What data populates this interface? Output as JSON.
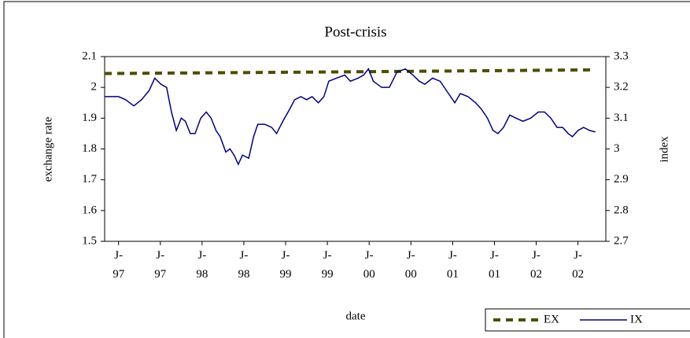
{
  "chart_data": {
    "type": "line",
    "title": "Post-crisis",
    "x_label": "date",
    "y_label": "exchange rate",
    "y2_label": "index",
    "xlim": [
      -2,
      70
    ],
    "xticks": [
      {
        "value": 0,
        "label": "J- 97"
      },
      {
        "value": 6,
        "label": "J- 97"
      },
      {
        "value": 12,
        "label": "J- 98"
      },
      {
        "value": 18,
        "label": "J- 98"
      },
      {
        "value": 24,
        "label": "J- 99"
      },
      {
        "value": 30,
        "label": "J- 99"
      },
      {
        "value": 36,
        "label": "J- 00"
      },
      {
        "value": 42,
        "label": "J- 00"
      },
      {
        "value": 48,
        "label": "J- 01"
      },
      {
        "value": 54,
        "label": "J- 01"
      },
      {
        "value": 60,
        "label": "J- 02"
      },
      {
        "value": 66,
        "label": "J- 02"
      }
    ],
    "ylim": [
      1.5,
      2.1
    ],
    "yticks": [
      1.5,
      1.6,
      1.7,
      1.8,
      1.9,
      2,
      2.1
    ],
    "y2lim": [
      2.7,
      3.3
    ],
    "y2ticks": [
      2.7,
      2.8,
      2.9,
      3,
      3.1,
      3.2,
      3.3
    ],
    "legend": "bottom-right",
    "series": [
      {
        "name": "EX",
        "color": "#4d4d00",
        "dash": true,
        "x": [
          -2,
          30,
          68.5
        ],
        "values": [
          2.045,
          2.05,
          2.057
        ]
      },
      {
        "name": "IX",
        "color": "#000080",
        "axis": "y2",
        "x": [
          -2,
          0,
          1,
          2.2,
          3.3,
          4.4,
          5.2,
          6.1,
          6.9,
          7.6,
          8.3,
          9,
          9.6,
          10.3,
          11,
          11.8,
          12.6,
          13.3,
          14,
          14.6,
          15.4,
          16,
          16.6,
          17.2,
          17.8,
          18.7,
          19.4,
          20,
          21,
          22,
          22.7,
          23.6,
          24.6,
          25.3,
          26.2,
          27,
          27.8,
          28.7,
          29.5,
          30.2,
          31.3,
          32.5,
          33.3,
          34.4,
          35.2,
          35.9,
          36.6,
          37.8,
          38.9,
          40,
          41.2,
          42.3,
          43.2,
          44,
          45.1,
          46.2,
          47.4,
          48.3,
          49.1,
          50.2,
          51.3,
          52.1,
          53,
          53.8,
          54.5,
          55.3,
          56.2,
          57.1,
          58.1,
          59.2,
          60.3,
          61.2,
          62.1,
          63,
          63.8,
          64.6,
          65.2,
          66,
          66.8,
          67.7,
          68.5
        ],
        "values": [
          3.17,
          3.17,
          3.16,
          3.14,
          3.16,
          3.19,
          3.23,
          3.21,
          3.2,
          3.12,
          3.06,
          3.1,
          3.09,
          3.05,
          3.05,
          3.1,
          3.12,
          3.1,
          3.06,
          3.04,
          2.99,
          3.0,
          2.98,
          2.95,
          2.98,
          2.97,
          3.04,
          3.08,
          3.08,
          3.07,
          3.05,
          3.09,
          3.13,
          3.16,
          3.17,
          3.16,
          3.17,
          3.15,
          3.17,
          3.22,
          3.23,
          3.24,
          3.22,
          3.23,
          3.24,
          3.26,
          3.22,
          3.2,
          3.2,
          3.25,
          3.26,
          3.24,
          3.22,
          3.21,
          3.23,
          3.22,
          3.18,
          3.15,
          3.18,
          3.17,
          3.15,
          3.13,
          3.1,
          3.06,
          3.05,
          3.07,
          3.11,
          3.1,
          3.09,
          3.1,
          3.12,
          3.12,
          3.1,
          3.07,
          3.07,
          3.05,
          3.04,
          3.06,
          3.07,
          3.06,
          3.055
        ]
      }
    ]
  }
}
